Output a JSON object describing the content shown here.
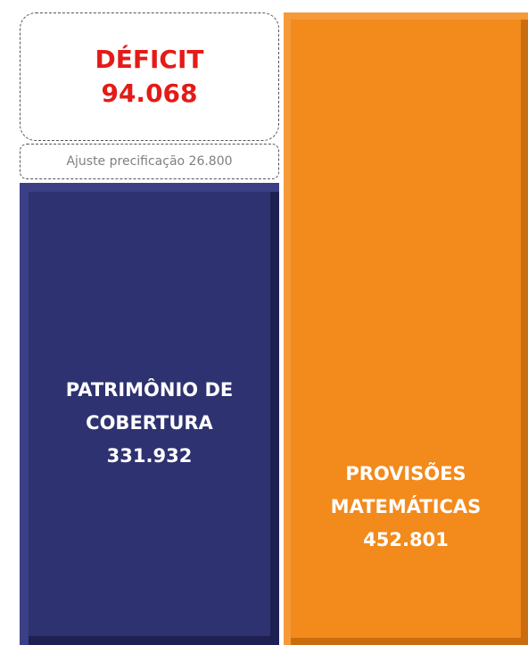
{
  "deficit": {
    "label": "DÉFICIT",
    "value": "94.068"
  },
  "adjustment": "Ajuste precificação 26.800",
  "coverage": {
    "lines": [
      "PATRIMÔNIO DE",
      "COBERTURA"
    ],
    "value": "331.932"
  },
  "provisions": {
    "lines": [
      "PROVISÕES",
      "MATEMÁTICAS"
    ],
    "value": "452.801"
  }
}
